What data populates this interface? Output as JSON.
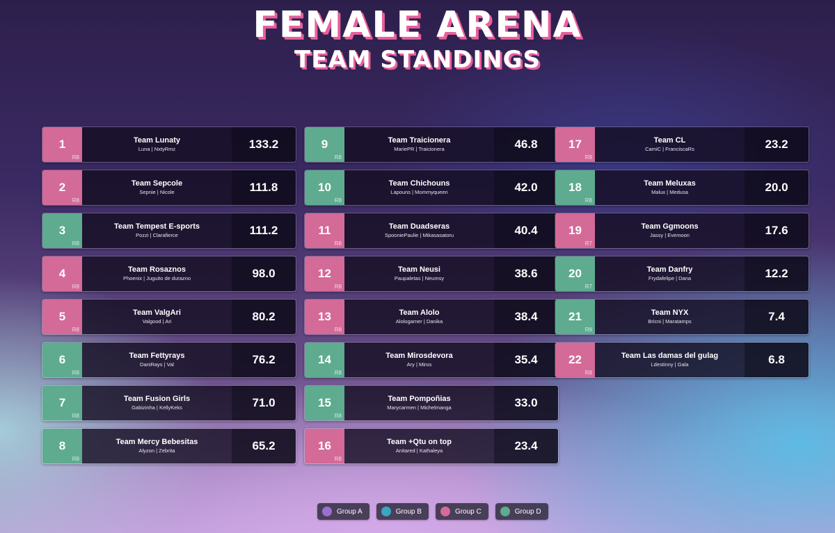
{
  "header": {
    "title": "FEMALE ARENA",
    "subtitle": "TEAM STANDINGS"
  },
  "colors": {
    "group_a": "#9b6fd0",
    "group_b": "#3aa7c2",
    "group_c": "#d46a98",
    "group_d": "#5eab90"
  },
  "columns": [
    [
      {
        "rank": "1",
        "round": "R8",
        "group": "pink",
        "team": "Team Lunaty",
        "members": "Luna | NxtyRmz",
        "points": "133.2"
      },
      {
        "rank": "2",
        "round": "R8",
        "group": "pink",
        "team": "Team Sepcole",
        "members": "Sepnie | Nicole",
        "points": "111.8"
      },
      {
        "rank": "3",
        "round": "R8",
        "group": "green",
        "team": "Team Tempest E-sports",
        "members": "Pozzi | Clarafierce",
        "points": "111.2"
      },
      {
        "rank": "4",
        "round": "R8",
        "group": "pink",
        "team": "Team Rosaznos",
        "members": "Phoenix | Juguito de durazno",
        "points": "98.0"
      },
      {
        "rank": "5",
        "round": "R8",
        "group": "pink",
        "team": "Team ValgAri",
        "members": "Valgood | Ari",
        "points": "80.2"
      },
      {
        "rank": "6",
        "round": "R8",
        "group": "green",
        "team": "Team Fettyrays",
        "members": "DaniRays | Val",
        "points": "76.2"
      },
      {
        "rank": "7",
        "round": "R8",
        "group": "green",
        "team": "Team Fusion Girls",
        "members": "Gabizinha | KellyKeks",
        "points": "71.0"
      },
      {
        "rank": "8",
        "round": "R8",
        "group": "green",
        "team": "Team Mercy Bebesitas",
        "members": "Alyzon | Zebrita",
        "points": "65.2"
      }
    ],
    [
      {
        "rank": "9",
        "round": "R8",
        "group": "green",
        "team": "Team Traicionera",
        "members": "MariePR | Traicionera",
        "points": "46.8"
      },
      {
        "rank": "10",
        "round": "R8",
        "group": "green",
        "team": "Team Chichouns",
        "members": "Lapouns | Mommyqueen",
        "points": "42.0"
      },
      {
        "rank": "11",
        "round": "R8",
        "group": "pink",
        "team": "Team Duadseras",
        "members": "SpooniePaulie | Mikasasatoru",
        "points": "40.4"
      },
      {
        "rank": "12",
        "round": "R8",
        "group": "pink",
        "team": "Team Neusi",
        "members": "Paupaletas | Neumsy",
        "points": "38.6"
      },
      {
        "rank": "13",
        "round": "R8",
        "group": "pink",
        "team": "Team Alolo",
        "members": "Alologamer | Danika",
        "points": "38.4"
      },
      {
        "rank": "14",
        "round": "R8",
        "group": "green",
        "team": "Team Mirosdevora",
        "members": "Ary | Miros",
        "points": "35.4"
      },
      {
        "rank": "15",
        "round": "R8",
        "group": "green",
        "team": "Team Pompoñias",
        "members": "Marycarmen | Michelmanga",
        "points": "33.0"
      },
      {
        "rank": "16",
        "round": "R8",
        "group": "pink",
        "team": "Team +Qtu on top",
        "members": "Anitared | Kathaleya",
        "points": "23.4"
      }
    ],
    [
      {
        "rank": "17",
        "round": "R8",
        "group": "pink",
        "team": "Team CL",
        "members": "CamiC | FranciscaRs",
        "points": "23.2"
      },
      {
        "rank": "18",
        "round": "R8",
        "group": "green",
        "team": "Team Meluxas",
        "members": "Malux | Medusa",
        "points": "20.0"
      },
      {
        "rank": "19",
        "round": "R7",
        "group": "pink",
        "team": "Team Ggmoons",
        "members": "Jassy | Evemoon",
        "points": "17.6"
      },
      {
        "rank": "20",
        "round": "R7",
        "group": "green",
        "team": "Team Danfry",
        "members": "Frydafelipe | Dana",
        "points": "12.2"
      },
      {
        "rank": "21",
        "round": "R8",
        "group": "green",
        "team": "Team NYX",
        "members": "Bricni | Maratamps",
        "points": "7.4"
      },
      {
        "rank": "22",
        "round": "R8",
        "group": "pink",
        "team": "Team Las damas del gulag",
        "members": "Ldestinny | Gala",
        "points": "6.8"
      }
    ]
  ],
  "legend": [
    {
      "label": "Group A",
      "color": "#9b6fd0"
    },
    {
      "label": "Group B",
      "color": "#3aa7c2"
    },
    {
      "label": "Group C",
      "color": "#d46a98"
    },
    {
      "label": "Group D",
      "color": "#5eab90"
    }
  ]
}
